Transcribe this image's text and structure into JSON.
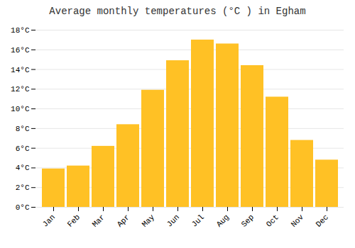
{
  "chart_data": {
    "type": "bar",
    "title": "Average monthly temperatures (°C ) in Egham",
    "categories": [
      "Jan",
      "Feb",
      "Mar",
      "Apr",
      "May",
      "Jun",
      "Jul",
      "Aug",
      "Sep",
      "Oct",
      "Nov",
      "Dec"
    ],
    "values": [
      3.9,
      4.2,
      6.2,
      8.4,
      11.9,
      14.9,
      17.0,
      16.6,
      14.4,
      11.2,
      6.8,
      4.8
    ],
    "color": "#FFC125",
    "ylim": [
      0,
      18
    ],
    "yticks": [
      {
        "value": 0,
        "label": "0°C"
      },
      {
        "value": 2,
        "label": "2°C"
      },
      {
        "value": 4,
        "label": "4°C"
      },
      {
        "value": 6,
        "label": "6°C"
      },
      {
        "value": 8,
        "label": "8°C"
      },
      {
        "value": 10,
        "label": "10°C"
      },
      {
        "value": 12,
        "label": "12°C"
      },
      {
        "value": 14,
        "label": "14°C"
      },
      {
        "value": 16,
        "label": "16°C"
      },
      {
        "value": 18,
        "label": "18°C"
      }
    ],
    "grid": true
  }
}
